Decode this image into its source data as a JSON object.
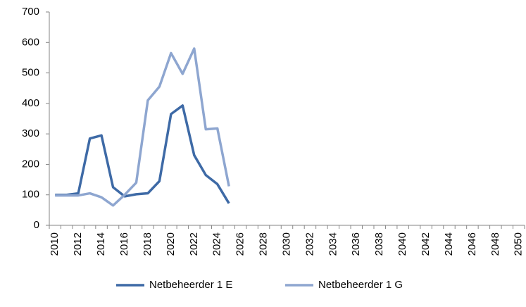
{
  "chart_data": {
    "type": "line",
    "categories": [
      "2010",
      null,
      "2012",
      null,
      "2014",
      null,
      "2016",
      null,
      "2018",
      null,
      "2020",
      null,
      "2022",
      null,
      "2024",
      null,
      "2026",
      null,
      "2028",
      null,
      "2030",
      null,
      "2032",
      null,
      "2034",
      null,
      "2036",
      null,
      "2038",
      null,
      "2040",
      null,
      "2042",
      null,
      "2044",
      null,
      "2046",
      null,
      "2048",
      null,
      "2050"
    ],
    "series": [
      {
        "name": "Netbeheerder 1 E",
        "color": "#3e6aa6",
        "values": [
          100,
          100,
          105,
          285,
          295,
          125,
          95,
          102,
          105,
          145,
          365,
          393,
          230,
          165,
          135,
          72,
          null,
          null,
          null,
          null,
          null,
          null,
          null,
          null,
          null,
          null,
          null,
          null,
          null,
          null,
          null,
          null,
          null,
          null,
          null,
          null,
          null,
          null,
          null,
          null,
          null
        ]
      },
      {
        "name": "Netbeheerder 1 G",
        "color": "#8ea6d0",
        "values": [
          98,
          98,
          98,
          105,
          92,
          65,
          100,
          140,
          410,
          455,
          565,
          497,
          580,
          315,
          318,
          128,
          null,
          null,
          null,
          null,
          null,
          null,
          null,
          null,
          null,
          null,
          null,
          null,
          null,
          null,
          null,
          null,
          null,
          null,
          null,
          null,
          null,
          null,
          null,
          null,
          null
        ]
      }
    ],
    "ylim": [
      0,
      700
    ],
    "yticks": [
      0,
      100,
      200,
      300,
      400,
      500,
      600,
      700
    ],
    "grid": false,
    "legend": "bottom"
  }
}
